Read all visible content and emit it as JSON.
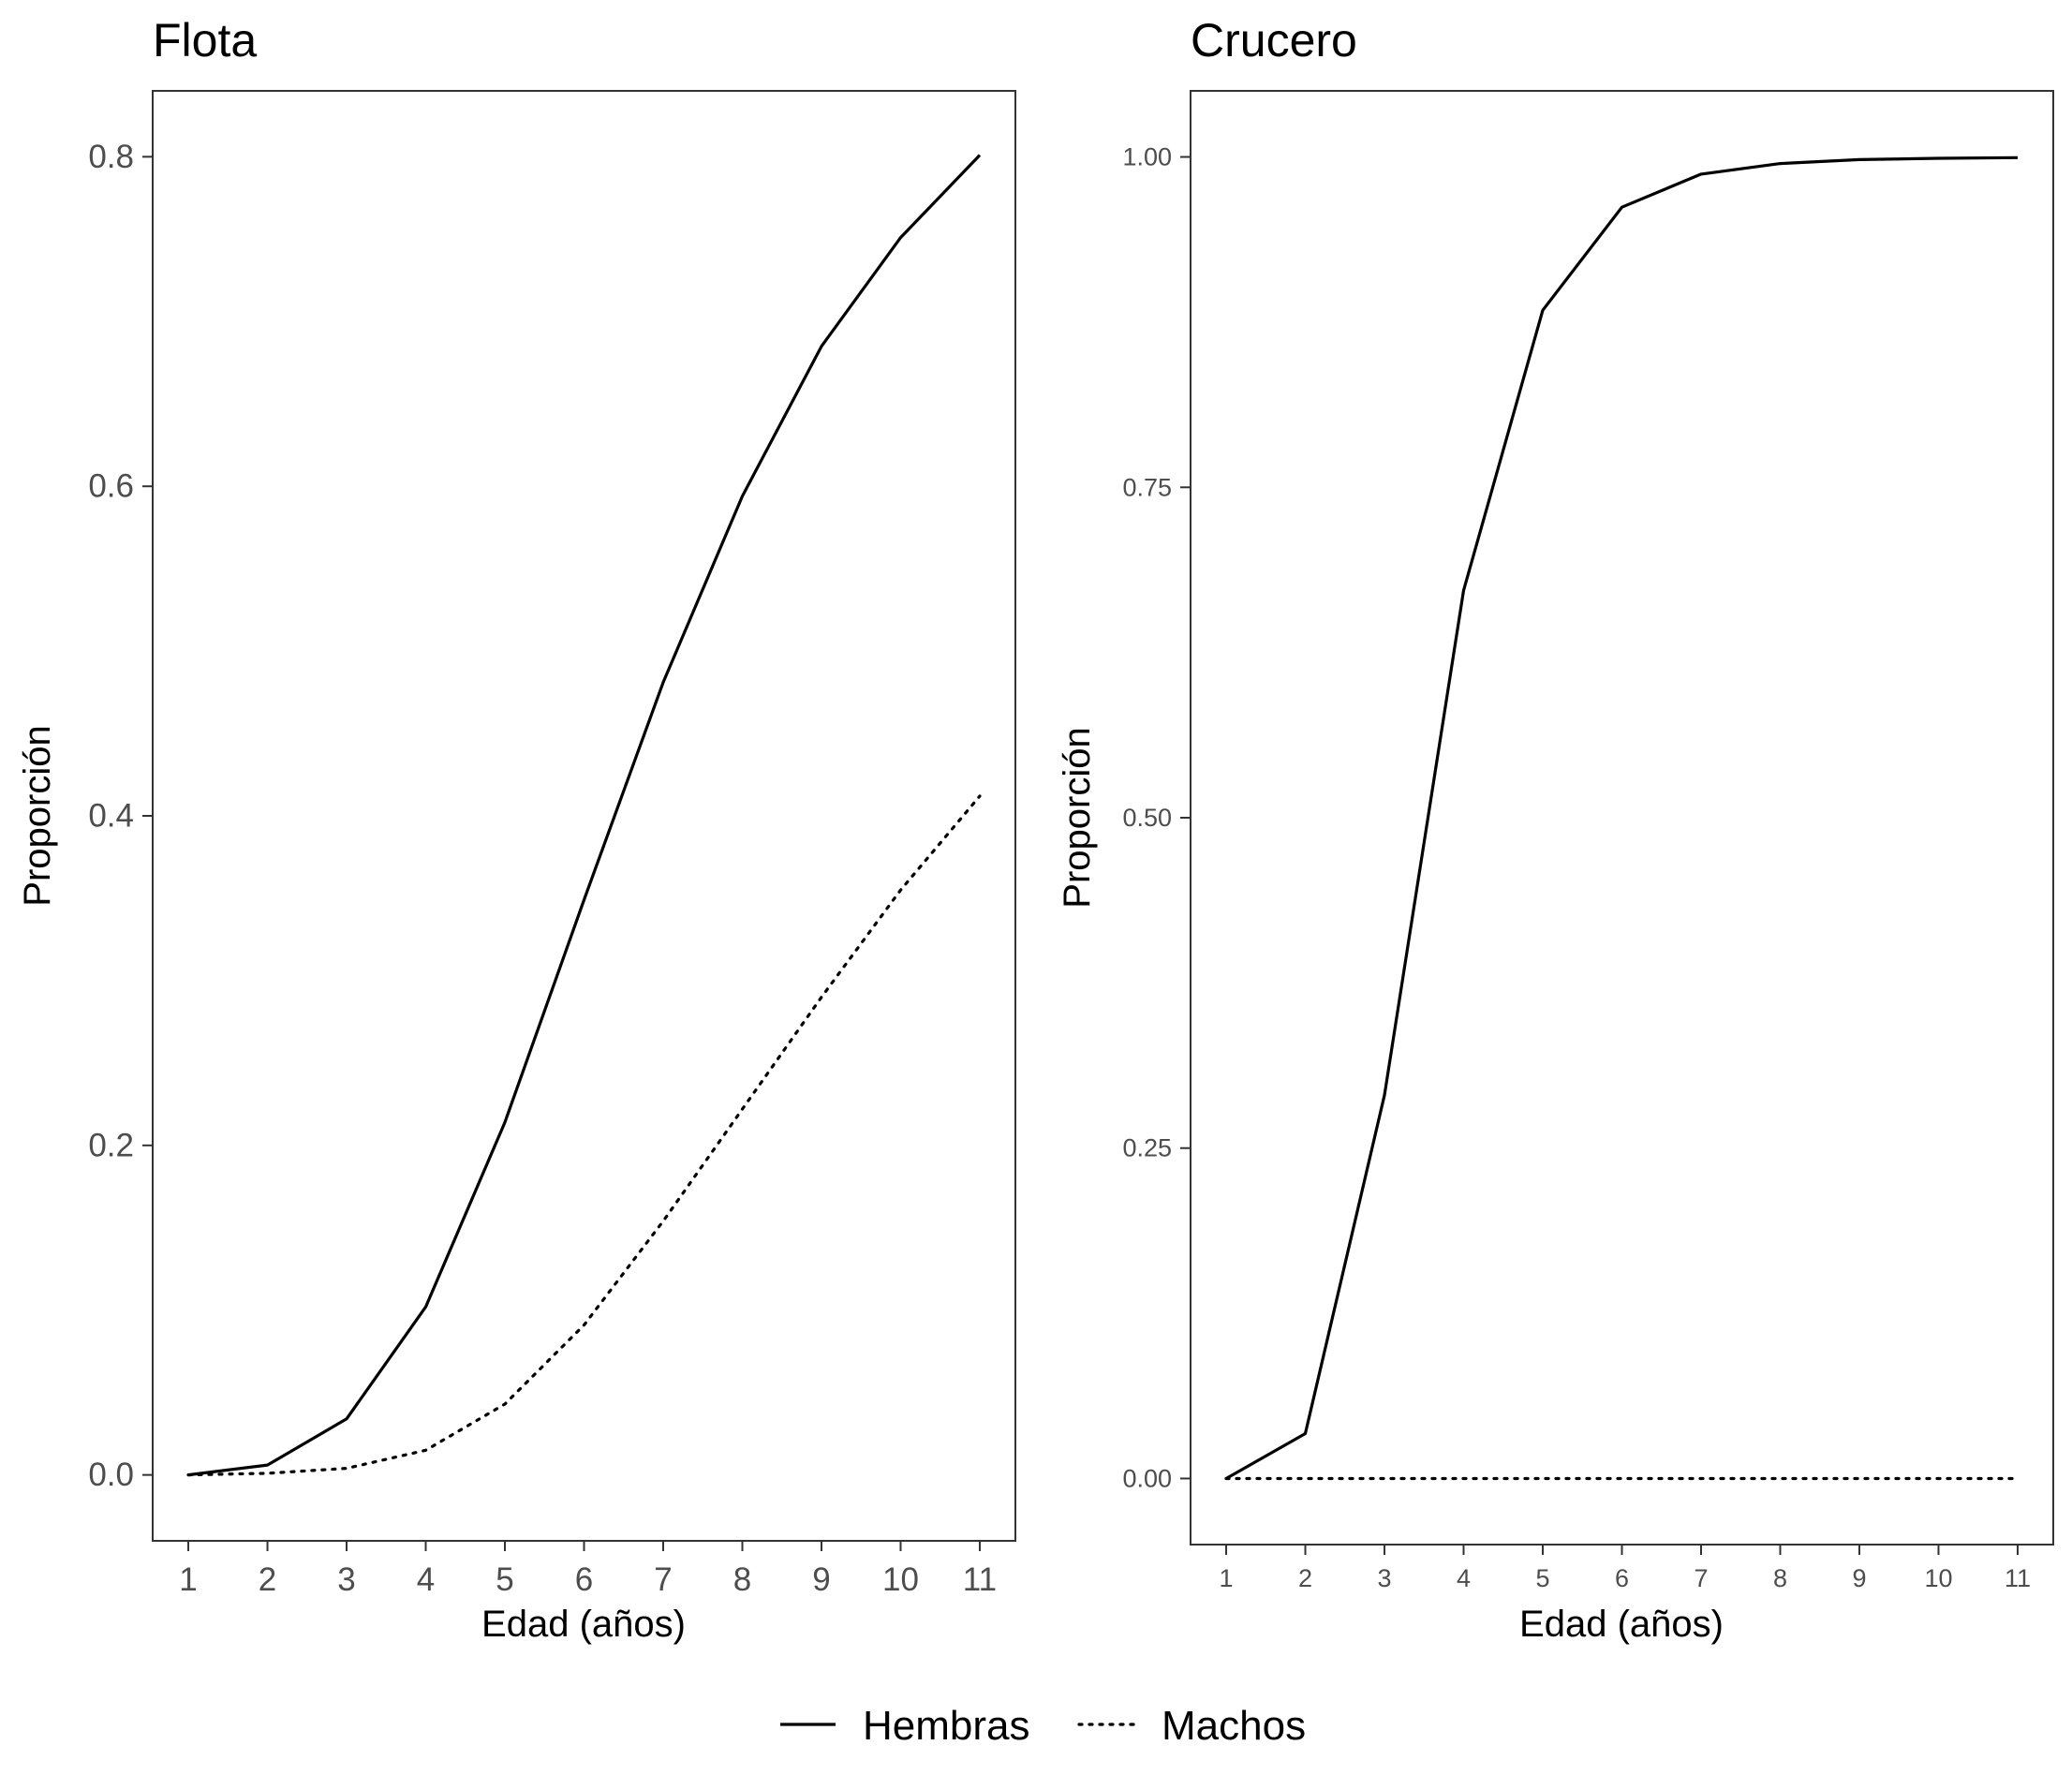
{
  "chart_data": [
    {
      "type": "line",
      "title": "Flota",
      "xlabel": "Edad (años)",
      "ylabel": "Proporción",
      "x": [
        1,
        2,
        3,
        4,
        5,
        6,
        7,
        8,
        9,
        10,
        11
      ],
      "xlim": [
        0.55,
        11.45
      ],
      "ylim": [
        -0.04,
        0.84
      ],
      "yticks": [
        "0.0",
        "0.2",
        "0.4",
        "0.6",
        "0.8"
      ],
      "ytick_values": [
        0.0,
        0.2,
        0.4,
        0.6,
        0.8
      ],
      "grid": false,
      "series": [
        {
          "name": "Hembras",
          "linestyle": "solid",
          "values": [
            0.0,
            0.006,
            0.034,
            0.102,
            0.214,
            0.349,
            0.481,
            0.594,
            0.685,
            0.751,
            0.801
          ]
        },
        {
          "name": "Machos",
          "linestyle": "dotted",
          "values": [
            0.0,
            0.001,
            0.004,
            0.015,
            0.043,
            0.091,
            0.154,
            0.222,
            0.29,
            0.355,
            0.412
          ]
        }
      ]
    },
    {
      "type": "line",
      "title": "Crucero",
      "xlabel": "Edad (años)",
      "ylabel": "Proporción",
      "x": [
        1,
        2,
        3,
        4,
        5,
        6,
        7,
        8,
        9,
        10,
        11
      ],
      "xlim": [
        0.55,
        11.45
      ],
      "ylim": [
        -0.05,
        1.05
      ],
      "yticks": [
        "0.00",
        "0.25",
        "0.50",
        "0.75",
        "1.00"
      ],
      "ytick_values": [
        0.0,
        0.25,
        0.5,
        0.75,
        1.0
      ],
      "grid": false,
      "series": [
        {
          "name": "Hembras",
          "linestyle": "solid",
          "values": [
            0.0,
            0.034,
            0.29,
            0.672,
            0.884,
            0.962,
            0.987,
            0.995,
            0.998,
            0.999,
            0.9995
          ]
        },
        {
          "name": "Machos",
          "linestyle": "dotted",
          "values": [
            0.0,
            0.0,
            0.0,
            0.0,
            0.0,
            0.0,
            0.0,
            0.0,
            0.0,
            0.0,
            0.0
          ]
        }
      ]
    }
  ],
  "legend": {
    "position": "bottom",
    "items": [
      {
        "label": "Hembras",
        "linestyle": "solid"
      },
      {
        "label": "Machos",
        "linestyle": "dotted"
      }
    ]
  }
}
